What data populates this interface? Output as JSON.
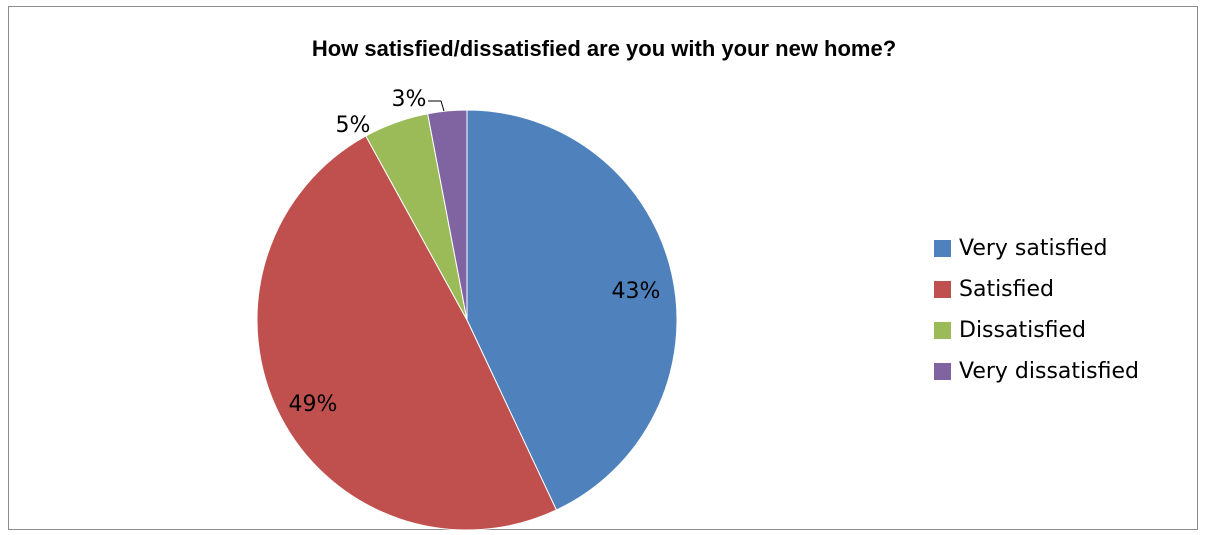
{
  "chart_data": {
    "type": "pie",
    "title": "How satisfied/dissatisfied are you with your new home?",
    "categories": [
      "Very satisfied",
      "Satisfied",
      "Dissatisfied",
      "Very dissatisfied"
    ],
    "values": [
      43,
      49,
      5,
      3
    ],
    "data_labels": [
      "43%",
      "49%",
      "5%",
      "3%"
    ],
    "colors": [
      "#4f81bd",
      "#c0504d",
      "#9bbb59",
      "#8064a2"
    ],
    "legend_position": "right"
  }
}
